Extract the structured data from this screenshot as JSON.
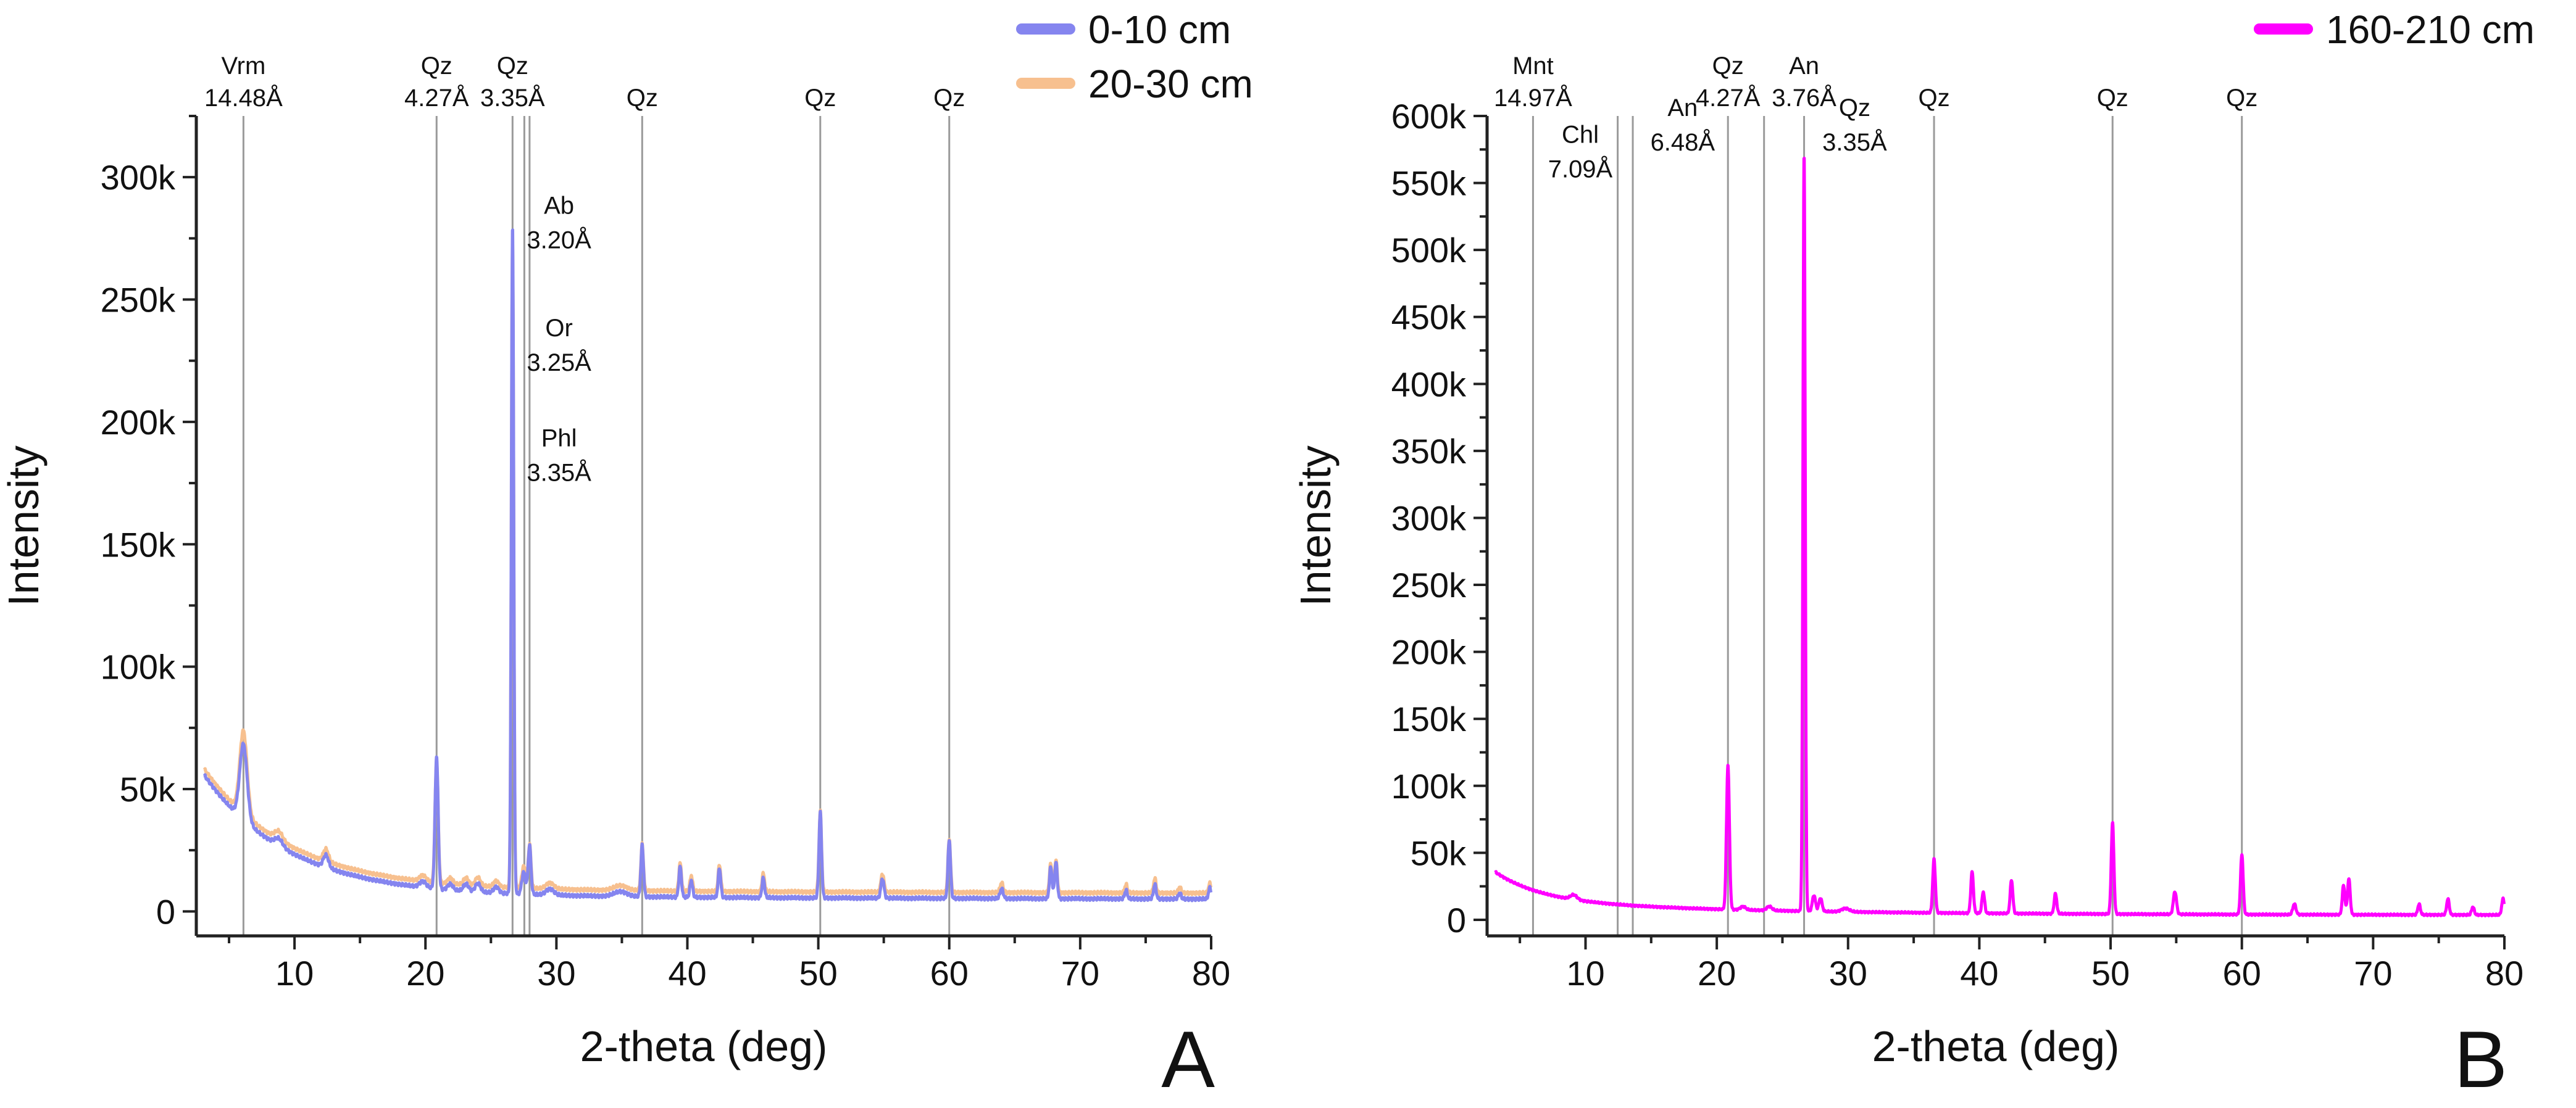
{
  "chart_data": [
    {
      "panel": "A",
      "type": "line",
      "xlabel": "2-theta (deg)",
      "ylabel": "Intensity",
      "xlim": [
        2.5,
        80
      ],
      "ylim": [
        -10000,
        325000
      ],
      "xticks": [
        10,
        20,
        30,
        40,
        50,
        60,
        70,
        80
      ],
      "xtick_labels": [
        "10",
        "20",
        "30",
        "40",
        "50",
        "60",
        "70",
        "80"
      ],
      "yticks": [
        0,
        50000,
        100000,
        150000,
        200000,
        250000,
        300000
      ],
      "ytick_labels": [
        "0",
        "50k",
        "100k",
        "150k",
        "200k",
        "250k",
        "300k"
      ],
      "grid": false,
      "legend_position": "top-right",
      "series": [
        {
          "name": "20-30 cm",
          "color": "#f7c08f",
          "peaks": [
            [
              6.1,
              34000,
              0.28
            ],
            [
              8.8,
              3500,
              0.3
            ],
            [
              12.4,
              5000,
              0.2
            ],
            [
              19.8,
              2500,
              0.25
            ],
            [
              20.85,
              50000,
              0.12
            ],
            [
              21.9,
              2500,
              0.2
            ],
            [
              23.1,
              3000,
              0.2
            ],
            [
              24.0,
              3500,
              0.2
            ],
            [
              25.4,
              2500,
              0.2
            ],
            [
              26.65,
              265000,
              0.09
            ],
            [
              27.5,
              9000,
              0.14
            ],
            [
              27.95,
              18000,
              0.11
            ],
            [
              29.5,
              2500,
              0.3
            ],
            [
              34.9,
              2000,
              0.5
            ],
            [
              36.55,
              19000,
              0.1
            ],
            [
              39.45,
              11500,
              0.1
            ],
            [
              40.3,
              6500,
              0.1
            ],
            [
              42.45,
              11000,
              0.1
            ],
            [
              45.8,
              7500,
              0.1
            ],
            [
              50.15,
              33000,
              0.1
            ],
            [
              54.9,
              7500,
              0.12
            ],
            [
              60.0,
              22000,
              0.1
            ],
            [
              64.0,
              4000,
              0.12
            ],
            [
              67.75,
              12000,
              0.1
            ],
            [
              68.15,
              13500,
              0.1
            ],
            [
              73.5,
              3500,
              0.1
            ],
            [
              75.7,
              6000,
              0.1
            ],
            [
              77.6,
              2500,
              0.1
            ],
            [
              79.9,
              4000,
              0.1
            ]
          ],
          "background": {
            "base": 4200,
            "amp": 50000,
            "decay": 6.5,
            "x0": 3.0,
            "amp2": 2600,
            "decay2": 90,
            "offset": 2200
          }
        },
        {
          "name": "0-10 cm",
          "color": "#8585ef",
          "peaks": [
            [
              6.1,
              31000,
              0.28
            ],
            [
              8.8,
              3000,
              0.3
            ],
            [
              12.4,
              5000,
              0.2
            ],
            [
              19.8,
              2500,
              0.25
            ],
            [
              20.85,
              54000,
              0.12
            ],
            [
              21.9,
              2500,
              0.2
            ],
            [
              23.1,
              3000,
              0.2
            ],
            [
              24.0,
              3500,
              0.2
            ],
            [
              25.4,
              2500,
              0.2
            ],
            [
              26.65,
              273000,
              0.09
            ],
            [
              27.5,
              9000,
              0.14
            ],
            [
              27.95,
              20000,
              0.11
            ],
            [
              29.5,
              2500,
              0.3
            ],
            [
              34.9,
              2000,
              0.5
            ],
            [
              36.55,
              21000,
              0.1
            ],
            [
              39.45,
              12500,
              0.1
            ],
            [
              40.3,
              7000,
              0.1
            ],
            [
              42.45,
              12000,
              0.1
            ],
            [
              45.8,
              8000,
              0.1
            ],
            [
              50.15,
              35000,
              0.1
            ],
            [
              54.9,
              8000,
              0.12
            ],
            [
              60.0,
              24000,
              0.1
            ],
            [
              64.0,
              4000,
              0.12
            ],
            [
              67.75,
              13000,
              0.1
            ],
            [
              68.15,
              15000,
              0.1
            ],
            [
              73.5,
              3500,
              0.1
            ],
            [
              75.7,
              6000,
              0.1
            ],
            [
              77.6,
              2500,
              0.1
            ],
            [
              79.9,
              4500,
              0.1
            ]
          ],
          "background": {
            "base": 4000,
            "amp": 50000,
            "decay": 6.5,
            "x0": 3.0,
            "amp2": 2500,
            "decay2": 90,
            "offset": 0
          }
        }
      ],
      "reference_lines": [
        6.1,
        20.85,
        26.65,
        27.55,
        27.95,
        36.55,
        50.15,
        60.0
      ],
      "top_labels": [
        {
          "x": 6.1,
          "lines": [
            "Vrm",
            "14.48Å"
          ]
        },
        {
          "x": 20.85,
          "lines": [
            "Qz",
            "4.27Å"
          ]
        },
        {
          "x": 26.65,
          "lines": [
            "Qz",
            "3.35Å"
          ]
        },
        {
          "x": 36.55,
          "lines": [
            "Qz"
          ]
        },
        {
          "x": 50.15,
          "lines": [
            "Qz"
          ]
        },
        {
          "x": 60.0,
          "lines": [
            "Qz"
          ]
        }
      ],
      "annotations": [
        {
          "x": 30.2,
          "y": 285000,
          "lines": [
            "Ab",
            "3.20Å"
          ]
        },
        {
          "x": 30.2,
          "y": 235000,
          "lines": [
            "Or",
            "3.25Å"
          ]
        },
        {
          "x": 30.2,
          "y": 190000,
          "lines": [
            "Phl",
            "3.35Å"
          ]
        }
      ],
      "panel_letter": "A"
    },
    {
      "panel": "B",
      "type": "line",
      "xlabel": "2-theta (deg)",
      "ylabel": "Intensity",
      "xlim": [
        2.5,
        80
      ],
      "ylim": [
        -12000,
        600000
      ],
      "xticks": [
        10,
        20,
        30,
        40,
        50,
        60,
        70,
        80
      ],
      "xtick_labels": [
        "10",
        "20",
        "30",
        "40",
        "50",
        "60",
        "70",
        "80"
      ],
      "yticks": [
        0,
        50000,
        100000,
        150000,
        200000,
        250000,
        300000,
        350000,
        400000,
        450000,
        500000,
        550000,
        600000
      ],
      "ytick_labels": [
        "0",
        "50k",
        "100k",
        "150k",
        "200k",
        "250k",
        "300k",
        "350k",
        "400k",
        "450k",
        "500k",
        "550k",
        "600k"
      ],
      "grid": false,
      "legend_position": "top-right",
      "series": [
        {
          "name": "160-210 cm",
          "color": "#ff00ff",
          "peaks": [
            [
              9.1,
              3500,
              0.25
            ],
            [
              20.85,
              108000,
              0.11
            ],
            [
              22.0,
              2500,
              0.2
            ],
            [
              24.0,
              3000,
              0.2
            ],
            [
              26.65,
              566000,
              0.085
            ],
            [
              27.4,
              12000,
              0.12
            ],
            [
              27.9,
              10000,
              0.12
            ],
            [
              29.8,
              2500,
              0.3
            ],
            [
              36.55,
              40000,
              0.1
            ],
            [
              39.45,
              31000,
              0.1
            ],
            [
              40.3,
              16000,
              0.1
            ],
            [
              42.45,
              25000,
              0.1
            ],
            [
              45.8,
              15000,
              0.1
            ],
            [
              50.15,
              68000,
              0.1
            ],
            [
              54.9,
              17000,
              0.12
            ],
            [
              60.0,
              45000,
              0.1
            ],
            [
              64.0,
              8000,
              0.12
            ],
            [
              67.75,
              22000,
              0.1
            ],
            [
              68.15,
              27000,
              0.1
            ],
            [
              73.5,
              8000,
              0.1
            ],
            [
              75.7,
              12000,
              0.1
            ],
            [
              77.6,
              6000,
              0.1
            ],
            [
              79.9,
              12000,
              0.1
            ]
          ],
          "background": {
            "base": 3500,
            "amp": 22000,
            "decay": 3.5,
            "x0": 3.0,
            "amp2": 11000,
            "decay2": 18,
            "offset": 0
          }
        }
      ],
      "reference_lines": [
        6.0,
        12.45,
        13.6,
        20.85,
        23.6,
        26.65,
        36.55,
        50.15,
        60.0
      ],
      "top_labels": [
        {
          "x": 6.0,
          "lines": [
            "Mnt",
            "14.97Å"
          ]
        },
        {
          "x": 20.85,
          "lines": [
            "Qz",
            "4.27Å"
          ]
        },
        {
          "x": 26.65,
          "lines": [
            "An",
            "3.76Å"
          ]
        },
        {
          "x": 36.55,
          "lines": [
            "Qz"
          ]
        },
        {
          "x": 50.15,
          "lines": [
            "Qz"
          ]
        },
        {
          "x": 60.0,
          "lines": [
            "Qz"
          ]
        }
      ],
      "annotations": [
        {
          "x": 9.6,
          "y": 580000,
          "lines": [
            "Chl",
            "7.09Å"
          ]
        },
        {
          "x": 17.4,
          "y": 600000,
          "lines": [
            "An",
            "6.48Å"
          ]
        },
        {
          "x": 30.5,
          "y": 600000,
          "lines": [
            "Qz",
            "3.35Å"
          ]
        }
      ],
      "panel_letter": "B"
    }
  ]
}
